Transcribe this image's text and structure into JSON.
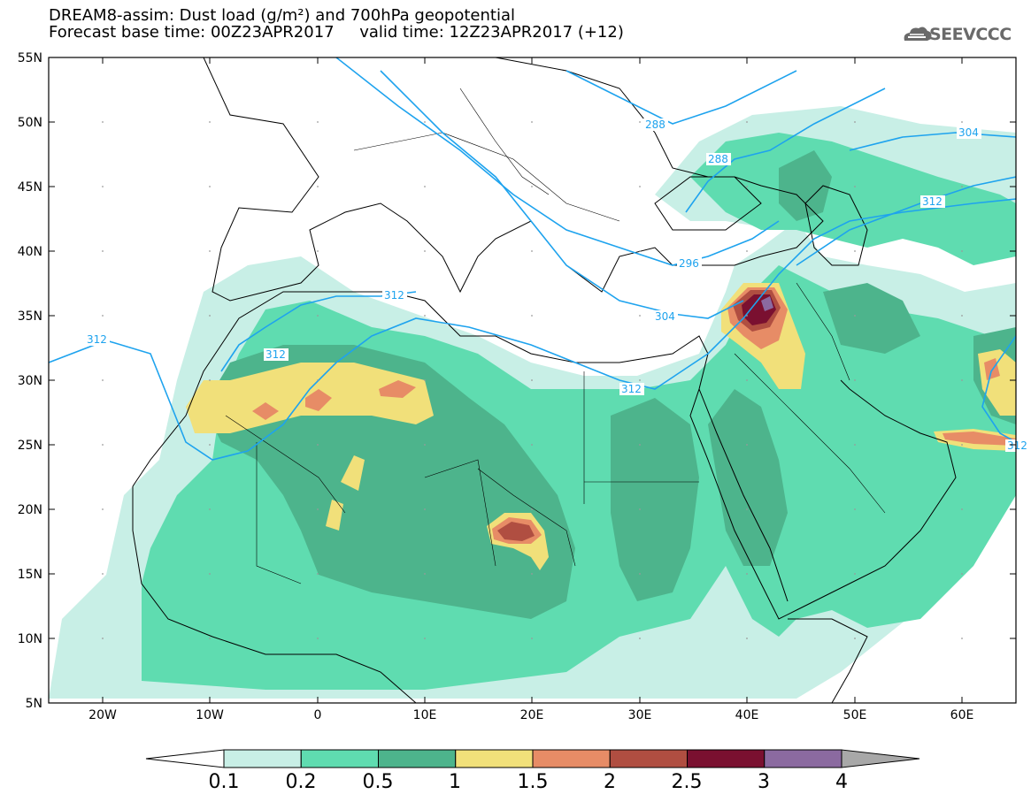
{
  "title": {
    "line1": "DREAM8-assim: Dust load (g/m²) and 700hPa geopotential",
    "line2": "Forecast base time: 00Z23APR2017     valid time: 12Z23APR2017 (+12)"
  },
  "logo": {
    "text": "SEEVCCC",
    "icon": "cloud-logo-icon"
  },
  "map": {
    "lat_labels": [
      "55N",
      "50N",
      "45N",
      "40N",
      "35N",
      "30N",
      "25N",
      "20N",
      "15N",
      "10N",
      "5N"
    ],
    "lon_labels": [
      "20W",
      "10W",
      "0",
      "10E",
      "20E",
      "30E",
      "40E",
      "50E",
      "60E"
    ],
    "contour_labels": [
      "288",
      "288",
      "304",
      "312",
      "296",
      "312",
      "304",
      "312",
      "312",
      "312",
      "312"
    ]
  },
  "legend": {
    "labels": [
      "0.1",
      "0.2",
      "0.5",
      "1",
      "1.5",
      "2",
      "2.5",
      "3",
      "4"
    ],
    "colors": [
      "#c8efe6",
      "#5fdcb0",
      "#4db48c",
      "#f1e07a",
      "#e78c66",
      "#b04e41",
      "#7a1030",
      "#8b6aa0"
    ],
    "under_color": "#ffffff",
    "over_color": "#a8a8a8"
  },
  "colors": {
    "contour": "#1ea3ee",
    "coast": "#000000",
    "low": "#c8efe6",
    "mid": "#5fdcb0",
    "high": "#4db48c",
    "yellow": "#f1e07a",
    "orange": "#e78c66",
    "brown": "#b04e41",
    "maroon": "#7a1030",
    "purple": "#8b6aa0"
  }
}
